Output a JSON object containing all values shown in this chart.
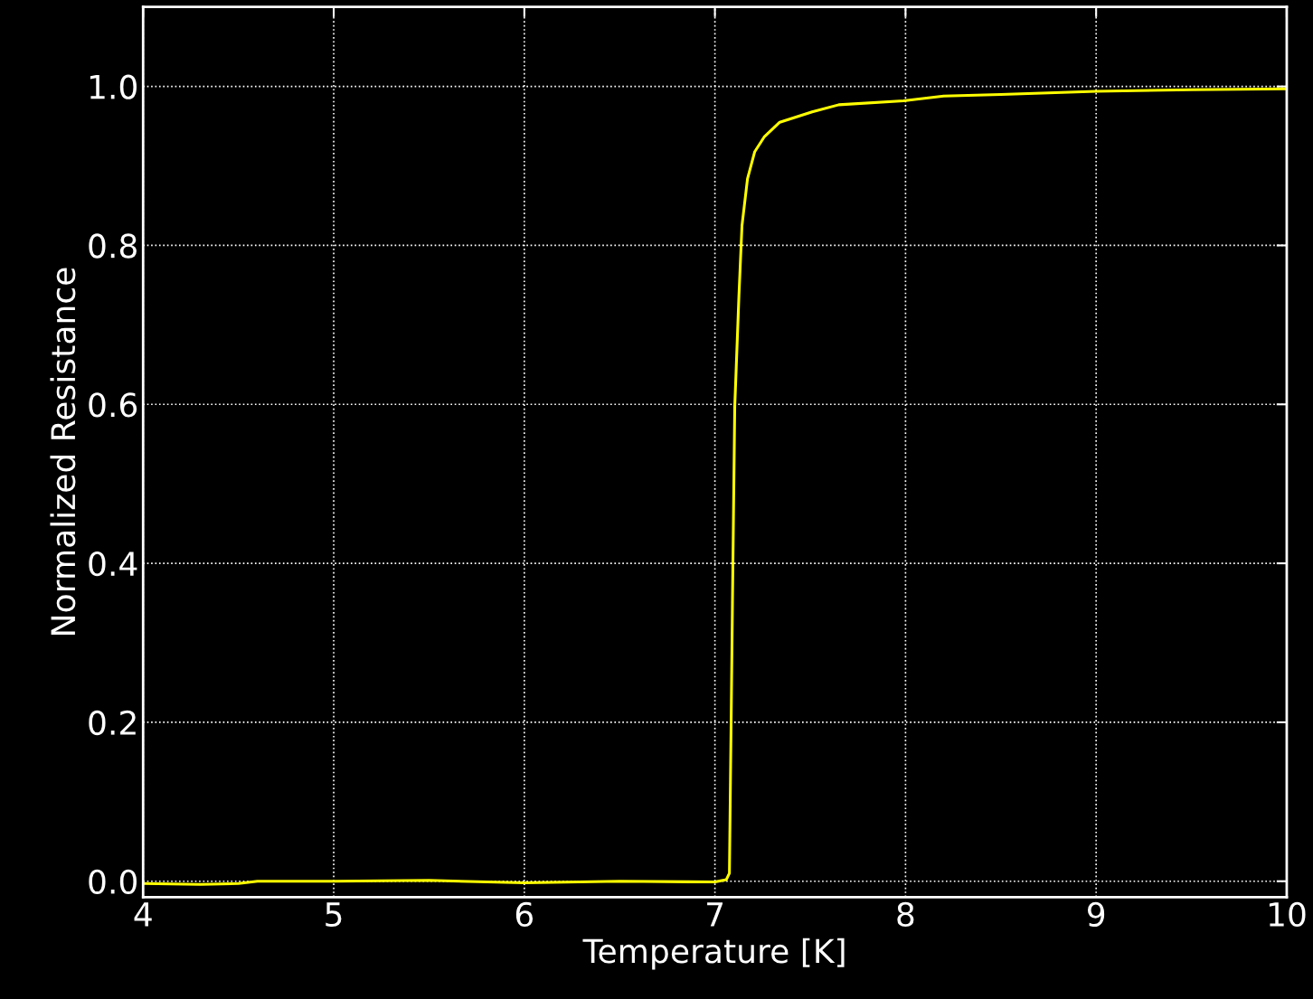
{
  "chart_data": {
    "type": "line",
    "xlabel": "Temperature [K]",
    "ylabel": "Normalized Resistance",
    "x": [
      4.0,
      4.3,
      4.5,
      4.6,
      5.0,
      5.5,
      6.0,
      6.5,
      7.0,
      7.06,
      7.076,
      7.092,
      7.104,
      7.126,
      7.142,
      7.171,
      7.209,
      7.26,
      7.34,
      7.51,
      7.65,
      7.99,
      8.2,
      8.5,
      9.0,
      9.5,
      10.0
    ],
    "series": [
      {
        "color": "#ffff00",
        "values": [
          -0.003,
          -0.004,
          -0.003,
          0.0,
          0.0,
          0.001,
          -0.002,
          0.0,
          -0.001,
          0.002,
          0.01,
          0.35,
          0.597,
          0.737,
          0.825,
          0.884,
          0.918,
          0.937,
          0.955,
          0.968,
          0.977,
          0.982,
          0.988,
          0.99,
          0.994,
          0.996,
          0.997
        ]
      }
    ],
    "xlim": [
      4,
      10
    ],
    "ylim": [
      -0.02,
      1.1
    ],
    "xticks": [
      4,
      5,
      6,
      7,
      8,
      9,
      10
    ],
    "yticks": [
      {
        "value": 0,
        "label": "0.0"
      },
      {
        "value": 0.2,
        "label": "0.2"
      },
      {
        "value": 0.4,
        "label": "0.4"
      },
      {
        "value": 0.6,
        "label": "0.6"
      },
      {
        "value": 0.8,
        "label": "0.8"
      },
      {
        "value": 1.0,
        "label": "1.0"
      }
    ],
    "grid": true,
    "line_style": "solid",
    "marker": "none"
  }
}
